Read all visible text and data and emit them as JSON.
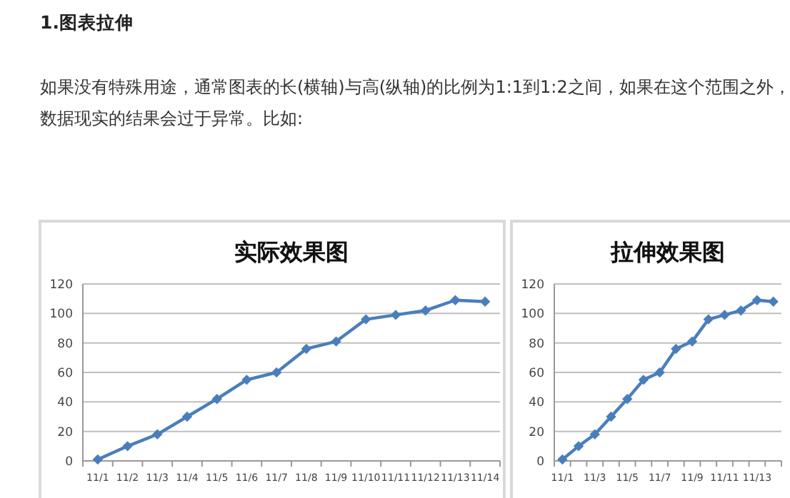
{
  "chart_data": [
    {
      "type": "line",
      "title": "实际效果图",
      "annotations": [
        "1.图表拉伸",
        "如果没有特殊用途，通常图表的长(横轴)与高(纵轴)的比例为1:1到1:2之间，如果在这个范围之外，数据现实的结果会过于异常。比如:"
      ],
      "categories": [
        "11/1",
        "11/2",
        "11/3",
        "11/4",
        "11/5",
        "11/6",
        "11/7",
        "11/8",
        "11/9",
        "11/10",
        "11/11",
        "11/12",
        "11/13",
        "11/14"
      ],
      "series": [
        {
          "color": "#4a7ebb",
          "values": [
            1,
            10,
            18,
            30,
            42,
            55,
            60,
            76,
            81,
            96,
            99,
            102,
            109,
            108
          ]
        }
      ],
      "ylim": [
        0,
        120
      ],
      "yticks": [
        0,
        20,
        40,
        60,
        80,
        100,
        120
      ],
      "grid": "y",
      "marker": "diamond",
      "line_style": "solid"
    },
    {
      "type": "line",
      "title": "拉伸效果图",
      "categories": [
        "11/1",
        null,
        "11/3",
        null,
        "11/5",
        null,
        "11/7",
        null,
        "11/9",
        null,
        "11/11",
        null,
        "11/13",
        null
      ],
      "series": [
        {
          "color": "#4a7ebb",
          "values": [
            1,
            10,
            18,
            30,
            42,
            55,
            60,
            76,
            81,
            96,
            99,
            102,
            109,
            108
          ]
        }
      ],
      "ylim": [
        0,
        120
      ],
      "yticks": [
        0,
        20,
        40,
        60,
        80,
        100,
        120
      ],
      "grid": "y",
      "marker": "diamond",
      "line_style": "solid"
    }
  ]
}
